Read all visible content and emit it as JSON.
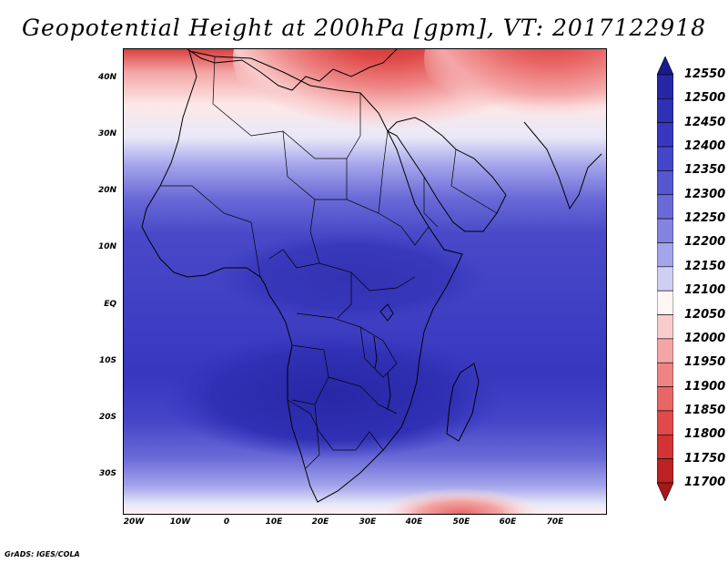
{
  "title": "Geopotential Height at 200hPa [gpm], VT: 2017122918",
  "credit": "GrADS: IGES/COLA",
  "map": {
    "latitude_labels": [
      "40N",
      "30N",
      "20N",
      "10N",
      "EQ",
      "10S",
      "20S",
      "30S"
    ],
    "longitude_labels": [
      "20W",
      "10W",
      "0",
      "10E",
      "20E",
      "30E",
      "40E",
      "50E",
      "60E",
      "70E"
    ],
    "region": "Africa, Middle East and Mediterranean",
    "variable": "Geopotential Height",
    "level": "200hPa",
    "units": "gpm",
    "valid_time": "2017122918"
  },
  "colorbar": {
    "levels": [
      "12550",
      "12500",
      "12450",
      "12400",
      "12350",
      "12300",
      "12250",
      "12200",
      "12150",
      "12100",
      "12050",
      "12000",
      "11950",
      "11900",
      "11850",
      "11800",
      "11750",
      "11700"
    ],
    "colors": [
      "#1a1a8c",
      "#2727a6",
      "#3030b4",
      "#3838bf",
      "#4545c8",
      "#5656cf",
      "#6a6ad7",
      "#8383e0",
      "#a4a4eb",
      "#cfcff5",
      "#fff5f5",
      "#f9cccc",
      "#f4a6a6",
      "#ee8484",
      "#e96666",
      "#e04a4a",
      "#d03434",
      "#bb2222",
      "#a81818"
    ]
  }
}
